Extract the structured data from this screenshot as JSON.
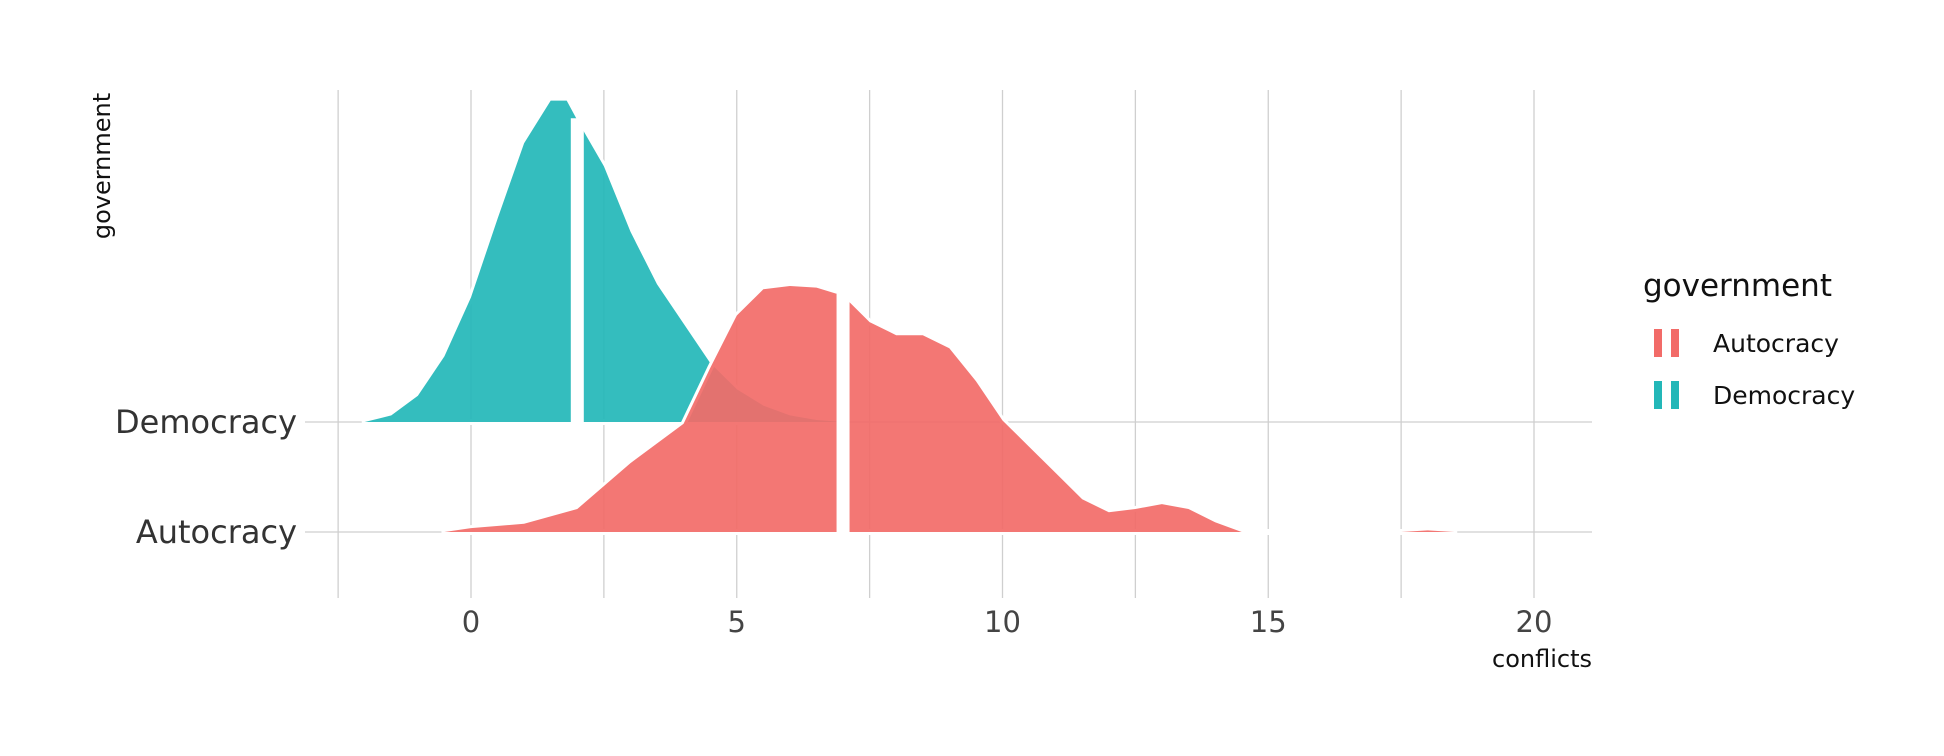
{
  "chart_data": {
    "type": "ridgeline",
    "xlabel": "conflicts",
    "ylabel": "government",
    "xlim": [
      -5,
      21
    ],
    "x_ticks": [
      0,
      5,
      10,
      15,
      20
    ],
    "grid": true,
    "legend": {
      "title": "government",
      "position": "right"
    },
    "colors": {
      "Autocracy": "#F26B68",
      "Democracy": "#23B7B8"
    },
    "series": [
      {
        "name": "Democracy",
        "median": 2,
        "density": [
          [
            -2.0,
            0.0
          ],
          [
            -1.5,
            0.02
          ],
          [
            -1.0,
            0.08
          ],
          [
            -0.5,
            0.2
          ],
          [
            0.0,
            0.38
          ],
          [
            0.5,
            0.62
          ],
          [
            1.0,
            0.85
          ],
          [
            1.5,
            0.98
          ],
          [
            1.8,
            0.98
          ],
          [
            2.0,
            0.92
          ],
          [
            2.5,
            0.78
          ],
          [
            3.0,
            0.58
          ],
          [
            3.5,
            0.42
          ],
          [
            4.0,
            0.3
          ],
          [
            4.5,
            0.18
          ],
          [
            5.0,
            0.1
          ],
          [
            5.5,
            0.05
          ],
          [
            6.0,
            0.02
          ],
          [
            6.5,
            0.006
          ],
          [
            7.0,
            0.0
          ]
        ]
      },
      {
        "name": "Autocracy",
        "median": 7,
        "density": [
          [
            -0.5,
            0.0
          ],
          [
            0.0,
            0.012
          ],
          [
            1.0,
            0.025
          ],
          [
            2.0,
            0.07
          ],
          [
            3.0,
            0.21
          ],
          [
            4.0,
            0.33
          ],
          [
            4.5,
            0.5
          ],
          [
            5.0,
            0.66
          ],
          [
            5.5,
            0.74
          ],
          [
            6.0,
            0.75
          ],
          [
            6.5,
            0.745
          ],
          [
            7.0,
            0.72
          ],
          [
            7.5,
            0.64
          ],
          [
            8.0,
            0.6
          ],
          [
            8.5,
            0.6
          ],
          [
            9.0,
            0.56
          ],
          [
            9.5,
            0.46
          ],
          [
            10.0,
            0.34
          ],
          [
            10.5,
            0.26
          ],
          [
            11.0,
            0.18
          ],
          [
            11.5,
            0.1
          ],
          [
            12.0,
            0.06
          ],
          [
            12.5,
            0.07
          ],
          [
            13.0,
            0.085
          ],
          [
            13.5,
            0.07
          ],
          [
            14.0,
            0.03
          ],
          [
            14.5,
            0.0
          ],
          [
            17.5,
            0.0
          ],
          [
            18.0,
            0.005
          ],
          [
            18.5,
            0.0
          ]
        ]
      }
    ]
  }
}
